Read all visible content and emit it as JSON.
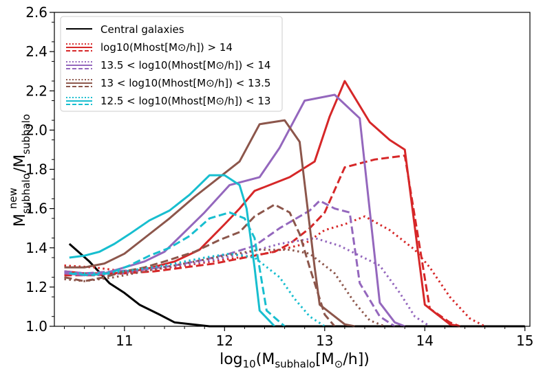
{
  "chart_data": {
    "type": "line",
    "xlabel": "log10(Msubhalo[M⊙/h])",
    "ylabel": "M_subhalo^new / M_subhalo",
    "xlim": [
      10.3,
      15.05
    ],
    "ylim": [
      1.0,
      2.6
    ],
    "xticks": [
      11,
      12,
      13,
      14,
      15
    ],
    "yticks": [
      1.0,
      1.2,
      1.4,
      1.6,
      1.8,
      2.0,
      2.2,
      2.4,
      2.6
    ],
    "grid": false,
    "legend_position": "top-left",
    "legend": [
      {
        "label": "Central galaxies",
        "color": "#000000"
      },
      {
        "label": "log10(Mhost[M⊙/h]) > 14",
        "color": "#d62728"
      },
      {
        "label": "13.5 < log10(Mhost[M⊙/h]) < 14",
        "color": "#9467bd"
      },
      {
        "label": "13 < log10(Mhost[M⊙/h]) < 13.5",
        "color": "#8c564b"
      },
      {
        "label": "12.5 < log10(Mhost[M⊙/h]) < 13",
        "color": "#17becf"
      }
    ],
    "series": [
      {
        "color": "#000000",
        "style": "solid",
        "points": [
          [
            10.45,
            1.42
          ],
          [
            10.65,
            1.33
          ],
          [
            10.85,
            1.22
          ],
          [
            11.0,
            1.17
          ],
          [
            11.15,
            1.11
          ],
          [
            11.35,
            1.06
          ],
          [
            11.5,
            1.02
          ],
          [
            11.85,
            1.0
          ],
          [
            15.0,
            1.0
          ]
        ]
      },
      {
        "color": "#d62728",
        "style": "solid",
        "points": [
          [
            10.4,
            1.28
          ],
          [
            10.6,
            1.27
          ],
          [
            10.9,
            1.27
          ],
          [
            11.2,
            1.29
          ],
          [
            11.5,
            1.33
          ],
          [
            11.75,
            1.39
          ],
          [
            12.0,
            1.52
          ],
          [
            12.15,
            1.6
          ],
          [
            12.3,
            1.69
          ],
          [
            12.5,
            1.73
          ],
          [
            12.65,
            1.76
          ],
          [
            12.9,
            1.84
          ],
          [
            13.05,
            2.07
          ],
          [
            13.2,
            2.25
          ],
          [
            13.45,
            2.04
          ],
          [
            13.65,
            1.95
          ],
          [
            13.8,
            1.9
          ],
          [
            14.0,
            1.11
          ],
          [
            14.25,
            1.01
          ],
          [
            14.35,
            1.0
          ]
        ]
      },
      {
        "color": "#d62728",
        "style": "dashed",
        "points": [
          [
            10.4,
            1.26
          ],
          [
            10.7,
            1.26
          ],
          [
            11.0,
            1.27
          ],
          [
            11.3,
            1.28
          ],
          [
            11.6,
            1.3
          ],
          [
            11.9,
            1.32
          ],
          [
            12.2,
            1.35
          ],
          [
            12.5,
            1.38
          ],
          [
            12.65,
            1.42
          ],
          [
            12.85,
            1.5
          ],
          [
            13.0,
            1.58
          ],
          [
            13.2,
            1.81
          ],
          [
            13.5,
            1.85
          ],
          [
            13.8,
            1.87
          ],
          [
            14.05,
            1.09
          ],
          [
            14.25,
            1.02
          ],
          [
            14.35,
            1.0
          ]
        ]
      },
      {
        "color": "#d62728",
        "style": "dotted",
        "points": [
          [
            10.4,
            1.31
          ],
          [
            10.7,
            1.3
          ],
          [
            11.0,
            1.28
          ],
          [
            11.3,
            1.29
          ],
          [
            11.6,
            1.31
          ],
          [
            12.0,
            1.34
          ],
          [
            12.4,
            1.37
          ],
          [
            12.8,
            1.42
          ],
          [
            13.0,
            1.49
          ],
          [
            13.2,
            1.52
          ],
          [
            13.4,
            1.56
          ],
          [
            13.65,
            1.49
          ],
          [
            13.9,
            1.39
          ],
          [
            14.05,
            1.3
          ],
          [
            14.25,
            1.15
          ],
          [
            14.45,
            1.04
          ],
          [
            14.6,
            1.0
          ]
        ]
      },
      {
        "color": "#9467bd",
        "style": "solid",
        "points": [
          [
            10.4,
            1.27
          ],
          [
            10.6,
            1.26
          ],
          [
            10.8,
            1.27
          ],
          [
            11.0,
            1.3
          ],
          [
            11.2,
            1.33
          ],
          [
            11.4,
            1.38
          ],
          [
            11.6,
            1.48
          ],
          [
            11.8,
            1.58
          ],
          [
            12.05,
            1.72
          ],
          [
            12.35,
            1.76
          ],
          [
            12.55,
            1.91
          ],
          [
            12.8,
            2.15
          ],
          [
            13.1,
            2.18
          ],
          [
            13.35,
            2.06
          ],
          [
            13.55,
            1.12
          ],
          [
            13.7,
            1.02
          ],
          [
            13.8,
            1.0
          ]
        ]
      },
      {
        "color": "#9467bd",
        "style": "dashed",
        "points": [
          [
            10.4,
            1.28
          ],
          [
            10.6,
            1.27
          ],
          [
            10.9,
            1.28
          ],
          [
            11.2,
            1.29
          ],
          [
            11.5,
            1.31
          ],
          [
            11.8,
            1.34
          ],
          [
            12.05,
            1.37
          ],
          [
            12.3,
            1.41
          ],
          [
            12.55,
            1.5
          ],
          [
            12.85,
            1.59
          ],
          [
            12.95,
            1.64
          ],
          [
            13.1,
            1.6
          ],
          [
            13.25,
            1.58
          ],
          [
            13.35,
            1.22
          ],
          [
            13.55,
            1.05
          ],
          [
            13.7,
            1.0
          ]
        ]
      },
      {
        "color": "#9467bd",
        "style": "dotted",
        "points": [
          [
            10.4,
            1.27
          ],
          [
            10.7,
            1.26
          ],
          [
            11.0,
            1.27
          ],
          [
            11.4,
            1.3
          ],
          [
            11.8,
            1.33
          ],
          [
            12.2,
            1.37
          ],
          [
            12.55,
            1.42
          ],
          [
            12.9,
            1.45
          ],
          [
            13.15,
            1.41
          ],
          [
            13.35,
            1.36
          ],
          [
            13.55,
            1.31
          ],
          [
            13.75,
            1.17
          ],
          [
            13.9,
            1.05
          ],
          [
            14.05,
            1.0
          ]
        ]
      },
      {
        "color": "#8c564b",
        "style": "solid",
        "points": [
          [
            10.4,
            1.3
          ],
          [
            10.6,
            1.3
          ],
          [
            10.8,
            1.32
          ],
          [
            11.0,
            1.37
          ],
          [
            11.2,
            1.45
          ],
          [
            11.45,
            1.55
          ],
          [
            11.7,
            1.66
          ],
          [
            11.95,
            1.76
          ],
          [
            12.15,
            1.84
          ],
          [
            12.35,
            2.03
          ],
          [
            12.6,
            2.05
          ],
          [
            12.75,
            1.94
          ],
          [
            12.9,
            1.3
          ],
          [
            12.95,
            1.11
          ],
          [
            13.2,
            1.01
          ],
          [
            13.3,
            1.0
          ]
        ]
      },
      {
        "color": "#8c564b",
        "style": "dashed",
        "points": [
          [
            10.4,
            1.25
          ],
          [
            10.6,
            1.23
          ],
          [
            10.8,
            1.25
          ],
          [
            11.0,
            1.28
          ],
          [
            11.2,
            1.3
          ],
          [
            11.4,
            1.33
          ],
          [
            11.7,
            1.38
          ],
          [
            11.95,
            1.44
          ],
          [
            12.15,
            1.48
          ],
          [
            12.3,
            1.56
          ],
          [
            12.5,
            1.62
          ],
          [
            12.65,
            1.58
          ],
          [
            12.75,
            1.47
          ],
          [
            12.85,
            1.3
          ],
          [
            13.0,
            1.06
          ],
          [
            13.1,
            1.0
          ]
        ]
      },
      {
        "color": "#8c564b",
        "style": "dotted",
        "points": [
          [
            10.4,
            1.24
          ],
          [
            10.6,
            1.23
          ],
          [
            10.9,
            1.25
          ],
          [
            11.2,
            1.28
          ],
          [
            11.6,
            1.32
          ],
          [
            12.0,
            1.36
          ],
          [
            12.35,
            1.39
          ],
          [
            12.65,
            1.39
          ],
          [
            12.85,
            1.37
          ],
          [
            13.1,
            1.27
          ],
          [
            13.3,
            1.12
          ],
          [
            13.45,
            1.03
          ],
          [
            13.6,
            1.0
          ]
        ]
      },
      {
        "color": "#17becf",
        "style": "solid",
        "points": [
          [
            10.45,
            1.35
          ],
          [
            10.6,
            1.36
          ],
          [
            10.75,
            1.38
          ],
          [
            10.9,
            1.42
          ],
          [
            11.05,
            1.47
          ],
          [
            11.25,
            1.54
          ],
          [
            11.45,
            1.59
          ],
          [
            11.65,
            1.67
          ],
          [
            11.85,
            1.77
          ],
          [
            12.0,
            1.77
          ],
          [
            12.15,
            1.72
          ],
          [
            12.22,
            1.6
          ],
          [
            12.3,
            1.3
          ],
          [
            12.35,
            1.08
          ],
          [
            12.5,
            1.0
          ]
        ]
      },
      {
        "color": "#17becf",
        "style": "dashed",
        "points": [
          [
            10.45,
            1.27
          ],
          [
            10.65,
            1.26
          ],
          [
            10.85,
            1.27
          ],
          [
            11.05,
            1.31
          ],
          [
            11.25,
            1.36
          ],
          [
            11.45,
            1.4
          ],
          [
            11.65,
            1.46
          ],
          [
            11.85,
            1.55
          ],
          [
            12.05,
            1.58
          ],
          [
            12.2,
            1.55
          ],
          [
            12.3,
            1.45
          ],
          [
            12.42,
            1.08
          ],
          [
            12.6,
            1.0
          ]
        ]
      },
      {
        "color": "#17becf",
        "style": "dotted",
        "points": [
          [
            10.45,
            1.27
          ],
          [
            10.7,
            1.27
          ],
          [
            11.0,
            1.28
          ],
          [
            11.4,
            1.31
          ],
          [
            11.8,
            1.35
          ],
          [
            12.05,
            1.37
          ],
          [
            12.3,
            1.35
          ],
          [
            12.55,
            1.25
          ],
          [
            12.7,
            1.14
          ],
          [
            12.85,
            1.05
          ],
          [
            13.0,
            1.0
          ]
        ]
      }
    ]
  }
}
